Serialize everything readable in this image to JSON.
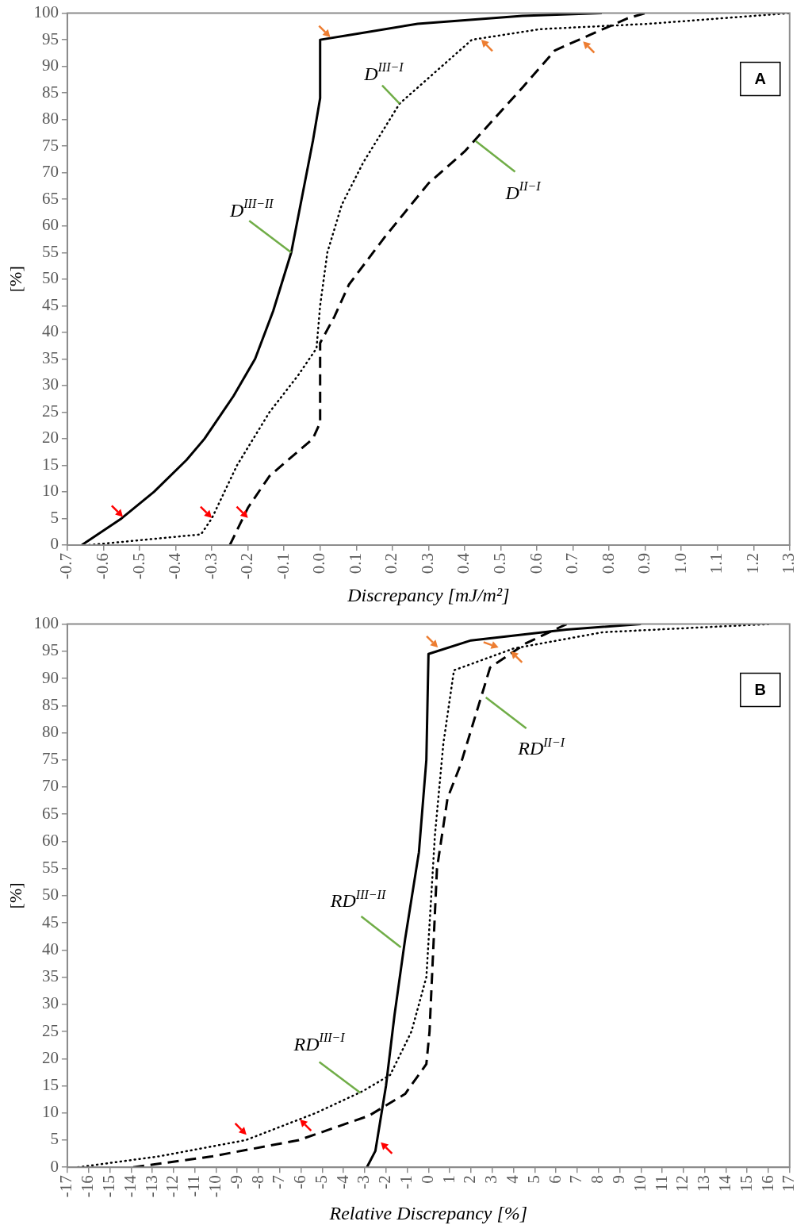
{
  "chart_data": [
    {
      "type": "line",
      "xlabel": "Discrepancy [mJ/m²]",
      "ylabel": "[%]",
      "marker": "none",
      "xlim": [
        -0.7,
        1.3
      ],
      "xticks": [
        -0.7,
        -0.6,
        -0.5,
        -0.4,
        -0.3,
        -0.2,
        -0.1,
        {
          "value": 0,
          "label": "0.0"
        },
        0.1,
        0.2,
        0.3,
        0.4,
        0.5,
        0.6,
        0.7,
        0.8,
        0.9,
        {
          "value": 1,
          "label": "1.0"
        },
        1.1,
        1.2,
        1.3
      ],
      "ylim": [
        0,
        100
      ],
      "yticks": [
        0,
        5,
        10,
        15,
        20,
        25,
        30,
        35,
        40,
        45,
        50,
        55,
        60,
        65,
        70,
        75,
        80,
        85,
        90,
        95,
        100
      ],
      "series": [
        {
          "color": "#000000",
          "line_style": "solid",
          "x": [
            -0.66,
            -0.55,
            -0.46,
            -0.37,
            -0.32,
            -0.24,
            -0.18,
            -0.13,
            -0.08,
            -0.02,
            0,
            0,
            0.09,
            0.27,
            0.56,
            0.78
          ],
          "values": [
            0,
            5,
            10,
            16,
            20,
            28,
            35,
            44,
            55,
            76,
            84,
            95,
            96,
            98,
            99.5,
            100
          ]
        },
        {
          "color": "#000000",
          "line_style": "dotted",
          "x": [
            -0.64,
            -0.33,
            -0.3,
            -0.23,
            -0.14,
            -0.06,
            -0.01,
            0,
            0.02,
            0.06,
            0.12,
            0.22,
            0.32,
            0.42,
            0.61,
            0.91,
            1.3
          ],
          "values": [
            0,
            2,
            5,
            15,
            25,
            32,
            37,
            45,
            55,
            64,
            72,
            83,
            89,
            95,
            97,
            98,
            100
          ]
        },
        {
          "color": "#000000",
          "line_style": "dashed",
          "x": [
            -0.25,
            -0.2,
            -0.14,
            -0.02,
            0,
            0,
            0.04,
            0.08,
            0.18,
            0.3,
            0.4,
            0.48,
            0.56,
            0.65,
            0.75,
            0.85,
            0.9
          ],
          "values": [
            0,
            7,
            13,
            20,
            23,
            38,
            43,
            49,
            58,
            68,
            74,
            80,
            86,
            93,
            96,
            99,
            100
          ]
        }
      ],
      "annotations": [
        {
          "text": "D$^{III−II}$",
          "x": -0.08,
          "y": 55
        },
        {
          "text": "D$^{III−I}$",
          "x": 0.22,
          "y": 83
        },
        {
          "text": "D$^{II−I}$",
          "x": 0.43,
          "y": 76
        },
        "A"
      ]
    },
    {
      "type": "line",
      "xlabel": "Relative Discrepancy [%]",
      "ylabel": "[%]",
      "marker": "none",
      "xlim": [
        -17,
        17
      ],
      "xticks": [
        -17,
        -16,
        -15,
        -14,
        -13,
        -12,
        -11,
        -10,
        -9,
        -8,
        -7,
        -6,
        -5,
        -4,
        -3,
        -2,
        -1,
        0,
        1,
        2,
        3,
        4,
        5,
        6,
        7,
        8,
        9,
        10,
        11,
        12,
        13,
        14,
        15,
        16,
        17
      ],
      "ylim": [
        0,
        100
      ],
      "yticks": [
        0,
        5,
        10,
        15,
        20,
        25,
        30,
        35,
        40,
        45,
        50,
        55,
        60,
        65,
        70,
        75,
        80,
        85,
        90,
        95,
        100
      ],
      "series": [
        {
          "color": "#000000",
          "line_style": "solid",
          "x": [
            -2.9,
            -2.5,
            -2,
            -1.6,
            -1.1,
            -0.45,
            -0.1,
            0,
            2,
            6.5,
            10
          ],
          "values": [
            0,
            3,
            15,
            28,
            42,
            58,
            75,
            94.5,
            97,
            99,
            100
          ]
        },
        {
          "color": "#000000",
          "line_style": "dotted",
          "x": [
            -16.5,
            -12.7,
            -8.6,
            -5.3,
            -3.1,
            -1.8,
            -0.8,
            -0.1,
            0.1,
            0.3,
            0.7,
            1.2,
            4,
            8.2,
            16
          ],
          "values": [
            0,
            2,
            5,
            10,
            14,
            17,
            25,
            35,
            48,
            61,
            78,
            91.5,
            95.5,
            98.5,
            100
          ]
        },
        {
          "color": "#000000",
          "line_style": "dashed",
          "x": [
            -13.9,
            -10.2,
            -6.1,
            -2.8,
            -1.1,
            -0.1,
            0.05,
            0.2,
            0.4,
            0.9,
            1.5,
            2.2,
            2.9,
            4.6,
            6.5
          ],
          "values": [
            0,
            2,
            5,
            9.5,
            13.5,
            19,
            25,
            38,
            55,
            68,
            74,
            83,
            92,
            96.5,
            100
          ]
        }
      ],
      "annotations": [
        {
          "text": "RD$^{III−II}$",
          "x": -1.3,
          "y": 40.5
        },
        {
          "text": "RD$^{III−I}$",
          "x": -3.2,
          "y": 13.7
        },
        {
          "text": "RD$^{II−I}$",
          "x": 2.7,
          "y": 86.5
        },
        "B"
      ]
    }
  ]
}
